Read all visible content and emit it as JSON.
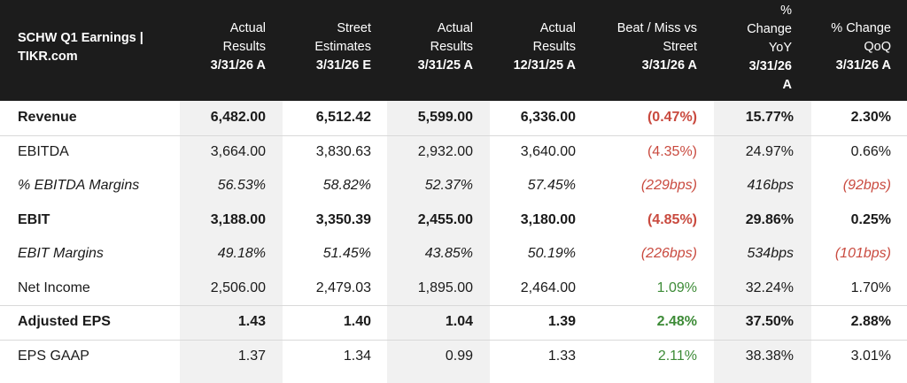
{
  "table": {
    "title_line1": "SCHW Q1 Earnings |",
    "title_line2": "TIKR.com",
    "columns": [
      {
        "line1": "Actual",
        "line2": "Results",
        "period": "3/31/26 A"
      },
      {
        "line1": "Street",
        "line2": "Estimates",
        "period": "3/31/26 E"
      },
      {
        "line1": "Actual",
        "line2": "Results",
        "period": "3/31/25 A"
      },
      {
        "line1": "Actual",
        "line2": "Results",
        "period": "12/31/25 A"
      },
      {
        "line1": "Beat / Miss vs",
        "line2": "Street",
        "period": "3/31/26 A"
      },
      {
        "line0": "%",
        "line1": "Change",
        "line2": "YoY",
        "period": "3/31/26",
        "period2": "A"
      },
      {
        "line1": "% Change",
        "line2": "QoQ",
        "period": "3/31/26 A"
      }
    ],
    "rows": [
      {
        "label": "Revenue",
        "values": [
          "6,482.00",
          "6,512.42",
          "5,599.00",
          "6,336.00",
          "(0.47%)",
          "15.77%",
          "2.30%"
        ]
      },
      {
        "label": "EBITDA",
        "values": [
          "3,664.00",
          "3,830.63",
          "2,932.00",
          "3,640.00",
          "(4.35%)",
          "24.97%",
          "0.66%"
        ]
      },
      {
        "label": "% EBITDA Margins",
        "values": [
          "56.53%",
          "58.82%",
          "52.37%",
          "57.45%",
          "(229bps)",
          "416bps",
          "(92bps)"
        ]
      },
      {
        "label": "EBIT",
        "values": [
          "3,188.00",
          "3,350.39",
          "2,455.00",
          "3,180.00",
          "(4.85%)",
          "29.86%",
          "0.25%"
        ]
      },
      {
        "label": "EBIT Margins",
        "values": [
          "49.18%",
          "51.45%",
          "43.85%",
          "50.19%",
          "(226bps)",
          "534bps",
          "(101bps)"
        ]
      },
      {
        "label": "Net Income",
        "values": [
          "2,506.00",
          "2,479.03",
          "1,895.00",
          "2,464.00",
          "1.09%",
          "32.24%",
          "1.70%"
        ]
      },
      {
        "label": "Adjusted EPS",
        "values": [
          "1.43",
          "1.40",
          "1.04",
          "1.39",
          "2.48%",
          "37.50%",
          "2.88%"
        ]
      },
      {
        "label": "EPS GAAP",
        "values": [
          "1.37",
          "1.34",
          "0.99",
          "1.33",
          "2.11%",
          "38.38%",
          "3.01%"
        ]
      }
    ],
    "colors": {
      "header_bg": "#1c1c1c",
      "negative": "#c94a3f",
      "positive": "#3d8b37",
      "shaded_column": "#f1f1f1"
    }
  }
}
